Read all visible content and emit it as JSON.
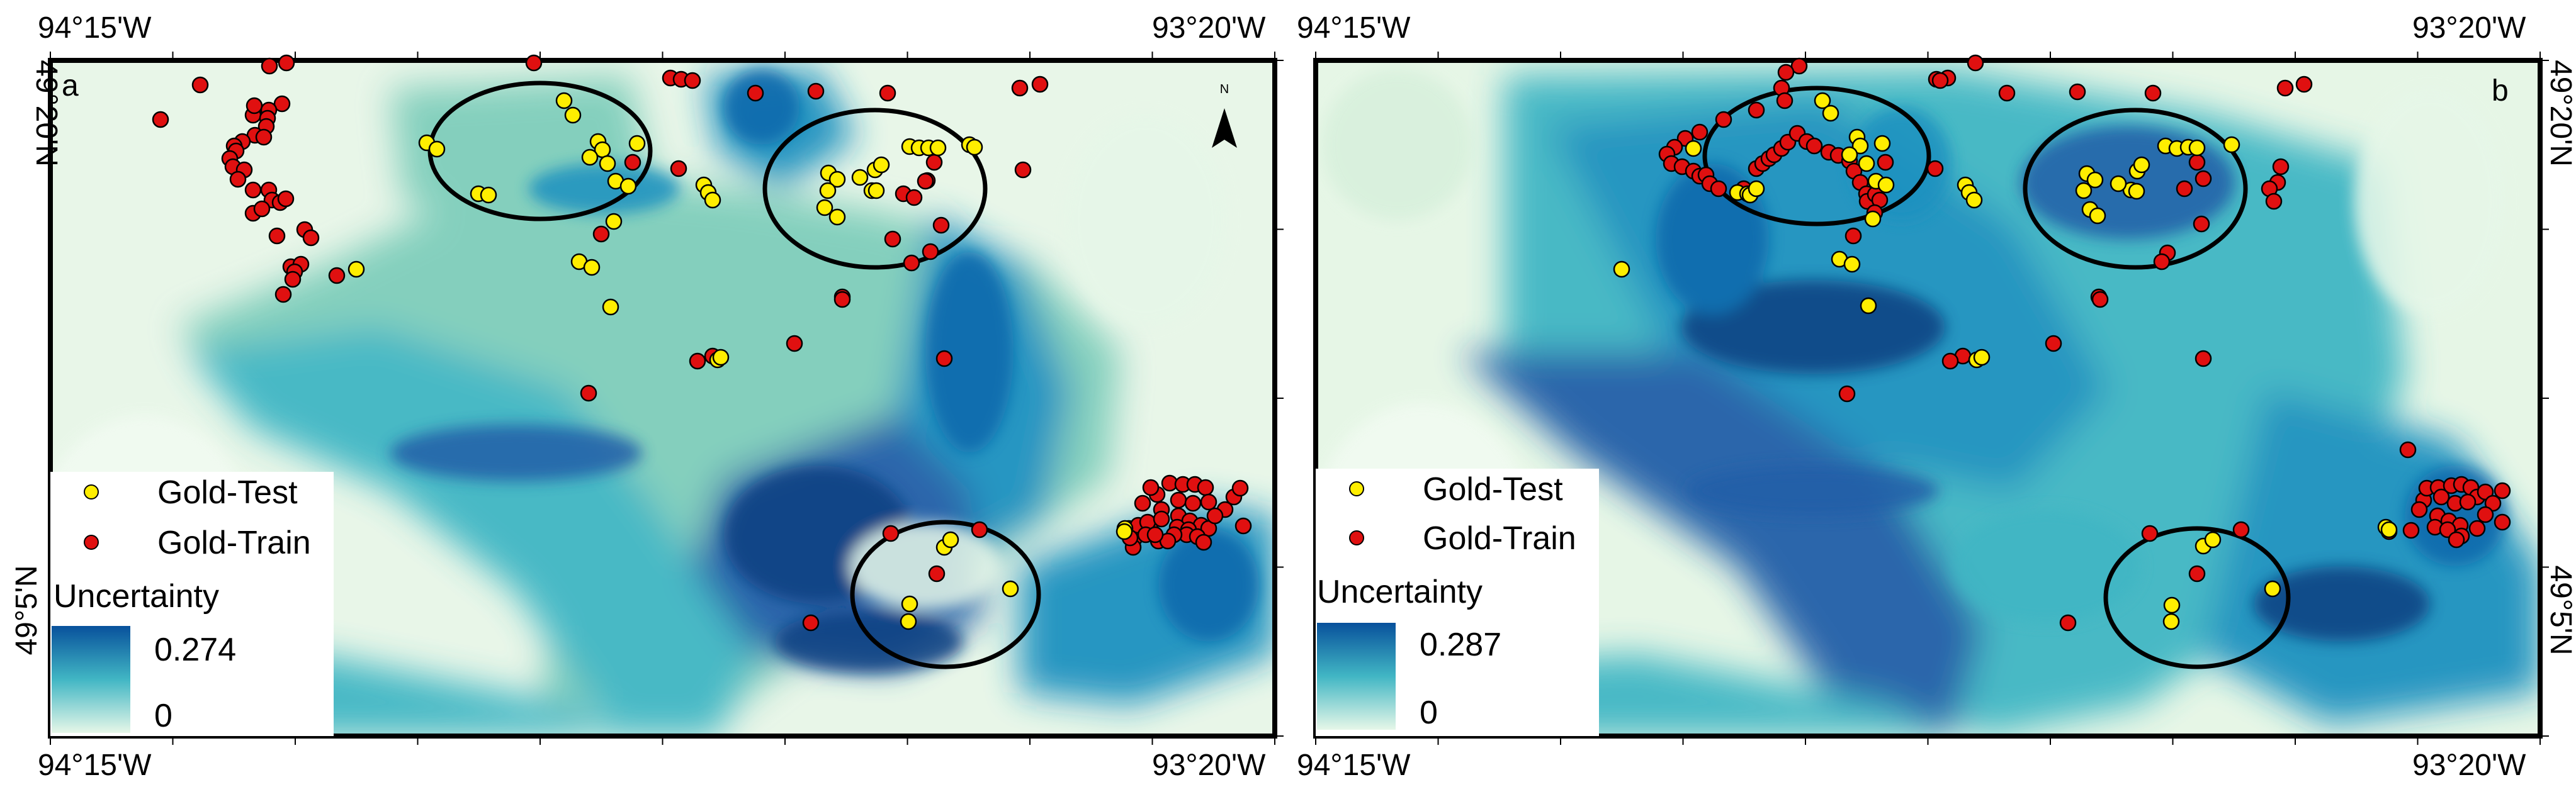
{
  "panels": [
    {
      "id": "a",
      "label": "a",
      "coords": {
        "top_left": "94°15'W",
        "top_right": "93°20'W",
        "bottom_left": "94°15'W",
        "bottom_right": "93°20'W",
        "right_top": "49°20'N",
        "right_bottom": "49°5'N"
      },
      "legend": {
        "test_label": "Gold-Test",
        "train_label": "Gold-Train",
        "title": "Uncertainty",
        "max": "0.274",
        "min": "0"
      },
      "north_arrow": "N"
    },
    {
      "id": "b",
      "label": "b",
      "coords": {
        "top_left": "94°15'W",
        "top_right": "93°20'W",
        "bottom_left": "94°15'W",
        "bottom_right": "93°20'W",
        "right_top": "49°20'N",
        "right_bottom": "49°5'N"
      },
      "legend": {
        "test_label": "Gold-Test",
        "train_label": "Gold-Train",
        "title": "Uncertainty",
        "max": "0.287",
        "min": "0"
      }
    }
  ],
  "colors": {
    "test": "#ffee00",
    "train": "#e01010",
    "uncert_high": "#08519c",
    "uncert_mid": "#41b6c4",
    "uncert_low": "#e6f7e8"
  }
}
